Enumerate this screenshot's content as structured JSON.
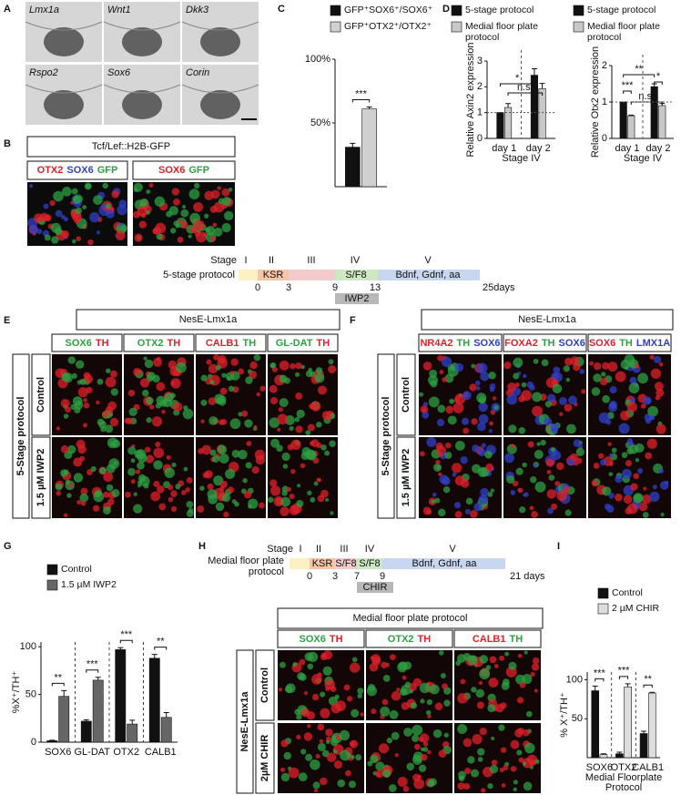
{
  "panel_labels": [
    "A",
    "B",
    "C",
    "D",
    "E",
    "F",
    "G",
    "H",
    "I"
  ],
  "figure": {
    "A": {
      "images": [
        "Lmx1a",
        "Wnt1",
        "Dkk3",
        "Rspo2",
        "Sox6",
        "Corin"
      ]
    },
    "B": {
      "title": "Tcf/Lef::H2B-GFP",
      "images": [
        {
          "words": [
            {
              "text": "OTX2",
              "color": "#e0202a"
            },
            {
              "text": "SOX6",
              "color": "#3040c8"
            },
            {
              "text": "GFP",
              "color": "#2ea043"
            }
          ]
        },
        {
          "words": [
            {
              "text": "SOX6",
              "color": "#e0202a"
            },
            {
              "text": "GFP",
              "color": "#2ea043"
            }
          ]
        }
      ]
    },
    "timeline_1": {
      "stage_label": "Stage",
      "stages": [
        "I",
        "II",
        "III",
        "IV",
        "V"
      ],
      "protocol": [
        "5-stage protocol"
      ],
      "segments": [
        "KSR",
        "S/F8",
        "Bdnf, Gdnf, aa"
      ],
      "days": [
        "0",
        "3",
        "9",
        "13",
        "25days"
      ],
      "treatment": "IWP2"
    },
    "E": {
      "title": "NesE-Lmx1a",
      "group_label": "5-Stage protocol",
      "rows": [
        "Control",
        "1.5 µM IWP2"
      ],
      "columns": [
        {
          "words": [
            {
              "text": "SOX6",
              "color": "#2ea043"
            },
            {
              "text": "TH",
              "color": "#e0202a"
            }
          ]
        },
        {
          "words": [
            {
              "text": "OTX2",
              "color": "#2ea043"
            },
            {
              "text": "TH",
              "color": "#e0202a"
            }
          ]
        },
        {
          "words": [
            {
              "text": "CALB1",
              "color": "#e0202a"
            },
            {
              "text": "TH",
              "color": "#2ea043"
            }
          ]
        },
        {
          "words": [
            {
              "text": "GL-DAT",
              "color": "#2ea043"
            },
            {
              "text": "TH",
              "color": "#e0202a"
            }
          ]
        }
      ]
    },
    "F": {
      "title": "NesE-Lmx1a",
      "group_label": "5-Stage protocol",
      "rows": [
        "Control",
        "1.5 µM IWP2"
      ],
      "columns": [
        {
          "words": [
            {
              "text": "NR4A2",
              "color": "#e0202a"
            },
            {
              "text": "TH",
              "color": "#2ea043"
            },
            {
              "text": "SOX6",
              "color": "#3040c8"
            }
          ]
        },
        {
          "words": [
            {
              "text": "FOXA2",
              "color": "#e0202a"
            },
            {
              "text": "TH",
              "color": "#2ea043"
            },
            {
              "text": "SOX6",
              "color": "#3040c8"
            }
          ]
        },
        {
          "words": [
            {
              "text": "SOX6",
              "color": "#e0202a"
            },
            {
              "text": "TH",
              "color": "#2ea043"
            },
            {
              "text": "LMX1A",
              "color": "#3040c8"
            }
          ]
        }
      ]
    },
    "timeline_2": {
      "stage_label": "Stage",
      "stages": [
        "I",
        "II",
        "III",
        "IV",
        "V"
      ],
      "protocol": [
        "Medial floor plate",
        "protocol"
      ],
      "segments": [
        "KSR",
        "S/F8",
        "S/F8",
        "Bdnf, Gdnf, aa"
      ],
      "days": [
        "0",
        "3",
        "7",
        "9",
        "21 days"
      ],
      "treatment": "CHIR"
    },
    "H": {
      "title": "Medial floor plate protocol",
      "group_label": "NesE-Lmx1a",
      "rows": [
        "Control",
        "2µM CHIR"
      ],
      "columns": [
        {
          "words": [
            {
              "text": "SOX6",
              "color": "#2ea043"
            },
            {
              "text": "TH",
              "color": "#e0202a"
            }
          ]
        },
        {
          "words": [
            {
              "text": "OTX2",
              "color": "#2ea043"
            },
            {
              "text": "TH",
              "color": "#e0202a"
            }
          ]
        },
        {
          "words": [
            {
              "text": "CALB1",
              "color": "#e0202a"
            },
            {
              "text": "TH",
              "color": "#2ea043"
            }
          ]
        }
      ]
    }
  },
  "chart_data": [
    {
      "type": "bar",
      "categories": [
        null
      ],
      "ylim": [
        0,
        100
      ],
      "yticks": [
        {
          "value": 50,
          "label": "50%"
        },
        {
          "value": 100,
          "label": "100%"
        }
      ],
      "series": [
        {
          "name": "GFP⁺SOX6⁺/SOX6⁺",
          "color": "#111111",
          "values": [
            31
          ],
          "errors": [
            3
          ]
        },
        {
          "name": "GFP⁺OTX2⁺/OTX2⁺",
          "color": "#d0d0d0",
          "values": [
            61
          ],
          "errors": [
            1.5
          ]
        }
      ],
      "significance": [
        "***"
      ]
    },
    {
      "type": "bar",
      "ylabel": "Relative Axin2 expression",
      "xlabel": [
        "Stage IV"
      ],
      "categories": [
        "day 1",
        "day 2"
      ],
      "ylim": [
        0,
        3
      ],
      "yticks": [
        0,
        1,
        2,
        3
      ],
      "series": [
        {
          "name": "5-stage protocol",
          "color": "#111111",
          "values": [
            1,
            2.45
          ],
          "errors": [
            0,
            0.25
          ]
        },
        {
          "name": "Medial floor plate protocol",
          "color": "#c8c8c8",
          "values": [
            1.2,
            1.93
          ],
          "errors": [
            0.15,
            0.2
          ]
        }
      ],
      "significance": [
        "*",
        "n.s."
      ]
    },
    {
      "type": "bar",
      "ylabel": "Relative Otx2 expression",
      "xlabel": [
        "Stage IV"
      ],
      "categories": [
        "day 1",
        "day 2"
      ],
      "ylim": [
        0,
        2
      ],
      "yticks": [
        0,
        1,
        2
      ],
      "series": [
        {
          "name": "5-stage protocol",
          "color": "#111111",
          "values": [
            1,
            1.42
          ],
          "errors": [
            0,
            0.08
          ]
        },
        {
          "name": "Medial floor plate protocol",
          "color": "#c8c8c8",
          "values": [
            0.62,
            0.9
          ],
          "errors": [
            0.02,
            0.06
          ]
        }
      ],
      "significance": [
        "***",
        "**",
        "n.s.",
        "*"
      ]
    },
    {
      "type": "bar",
      "ylabel": "%X⁺/TH⁺",
      "categories": [
        "SOX6",
        "GL-DAT",
        "OTX2",
        "CALB1"
      ],
      "ylim": [
        0,
        105
      ],
      "yticks": [
        0,
        50,
        100
      ],
      "series": [
        {
          "name": "Control",
          "color": "#111111",
          "values": [
            1.5,
            22,
            97,
            88
          ],
          "errors": [
            0.5,
            1.5,
            2,
            4
          ]
        },
        {
          "name": "1.5 µM IWP2",
          "color": "#666666",
          "values": [
            48,
            65,
            19,
            26
          ],
          "errors": [
            6,
            3,
            4,
            5
          ]
        }
      ],
      "significance": [
        "**",
        "***",
        "***",
        "**"
      ]
    },
    {
      "type": "bar",
      "ylabel": "% X⁺/TH⁺",
      "xlabel": [
        "Medial Floorplate",
        "Protocol"
      ],
      "categories": [
        "SOX6",
        "OTX2",
        "CALB1"
      ],
      "ylim": [
        0,
        110
      ],
      "yticks": [
        50,
        100
      ],
      "series": [
        {
          "name": "Control",
          "color": "#111111",
          "values": [
            86,
            5,
            31
          ],
          "errors": [
            6,
            2,
            3
          ]
        },
        {
          "name": "2 µM CHIR",
          "color": "#dddddd",
          "values": [
            4,
            91,
            83
          ],
          "errors": [
            1,
            4,
            1
          ]
        }
      ],
      "significance": [
        "***",
        "***",
        "**"
      ]
    }
  ]
}
